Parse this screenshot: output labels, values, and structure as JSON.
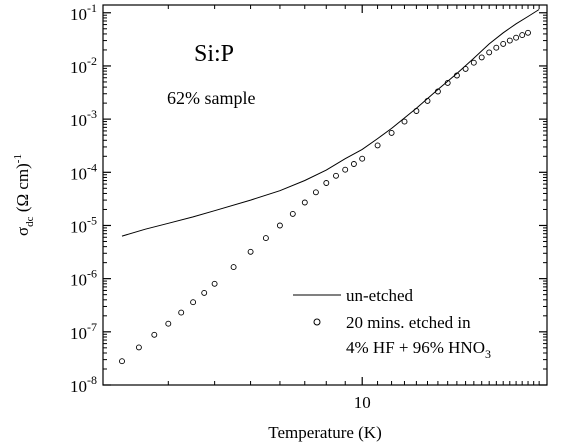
{
  "chart_data": {
    "type": "line",
    "ylabel": "σdc (Ω cm)-1",
    "xlabel": "Temperature (K)",
    "xscale": "log",
    "yscale": "log",
    "xlim": [
      2.0,
      31.5
    ],
    "ylim": [
      1e-08,
      0.14
    ],
    "xticks": [
      {
        "value": 10,
        "label": "10"
      }
    ],
    "yticks": [
      {
        "value": 1e-08,
        "mant": "10",
        "exp": "-8"
      },
      {
        "value": 1e-07,
        "mant": "10",
        "exp": "-7"
      },
      {
        "value": 1e-06,
        "mant": "10",
        "exp": "-6"
      },
      {
        "value": 1e-05,
        "mant": "10",
        "exp": "-5"
      },
      {
        "value": 0.0001,
        "mant": "10",
        "exp": "-4"
      },
      {
        "value": 0.001,
        "mant": "10",
        "exp": "-3"
      },
      {
        "value": 0.01,
        "mant": "10",
        "exp": "-2"
      },
      {
        "value": 0.1,
        "mant": "10",
        "exp": "-1"
      }
    ],
    "annotations": {
      "material": "Si:P",
      "sample": "62% sample"
    },
    "legend": {
      "position": "bottom-right",
      "entries": [
        {
          "marker": "line",
          "label": "un-etched"
        },
        {
          "marker": "circle",
          "label_line1": "20 mins. etched in",
          "label_line2_main": "4% HF + 96% HNO",
          "label_line2_sub": "3"
        }
      ]
    },
    "series": [
      {
        "name": "un-etched",
        "style": "line",
        "x": [
          2.25,
          2.6,
          3.0,
          3.5,
          4.0,
          5.0,
          6.0,
          7.0,
          8.0,
          9.0,
          10.0,
          11.0,
          12.0,
          14.0,
          16.0,
          18.0,
          20.0,
          22.0,
          24.0,
          26.0,
          28.0,
          30.0
        ],
        "y": [
          6.3e-06,
          8.5e-06,
          1.1e-05,
          1.45e-05,
          1.9e-05,
          3e-05,
          4.5e-05,
          7e-05,
          0.00011,
          0.00018,
          0.00027,
          0.00043,
          0.00067,
          0.0016,
          0.0036,
          0.0072,
          0.014,
          0.026,
          0.042,
          0.062,
          0.085,
          0.115
        ]
      },
      {
        "name": "20 mins. etched in 4% HF + 96% HNO3",
        "style": "circle",
        "x": [
          2.25,
          2.5,
          2.75,
          3.0,
          3.25,
          3.5,
          3.75,
          4.0,
          4.5,
          5.0,
          5.5,
          6.0,
          6.5,
          7.0,
          7.5,
          8.0,
          8.5,
          9.0,
          9.5,
          10.0,
          11.0,
          12.0,
          13.0,
          14.0,
          15.0,
          16.0,
          17.0,
          18.0,
          19.0,
          20.0,
          21.0,
          22.0,
          23.0,
          24.0,
          25.0,
          26.0,
          27.0,
          28.0
        ],
        "y": [
          2.8e-08,
          5.1e-08,
          8.8e-08,
          1.42e-07,
          2.3e-07,
          3.6e-07,
          5.4e-07,
          8e-07,
          1.65e-06,
          3.2e-06,
          5.8e-06,
          1e-05,
          1.65e-05,
          2.7e-05,
          4.2e-05,
          6.3e-05,
          8.6e-05,
          0.000112,
          0.000143,
          0.00018,
          0.00032,
          0.00055,
          0.0009,
          0.00142,
          0.0022,
          0.0033,
          0.0048,
          0.0066,
          0.0088,
          0.0115,
          0.0145,
          0.018,
          0.022,
          0.026,
          0.03,
          0.034,
          0.038,
          0.042
        ]
      }
    ]
  }
}
